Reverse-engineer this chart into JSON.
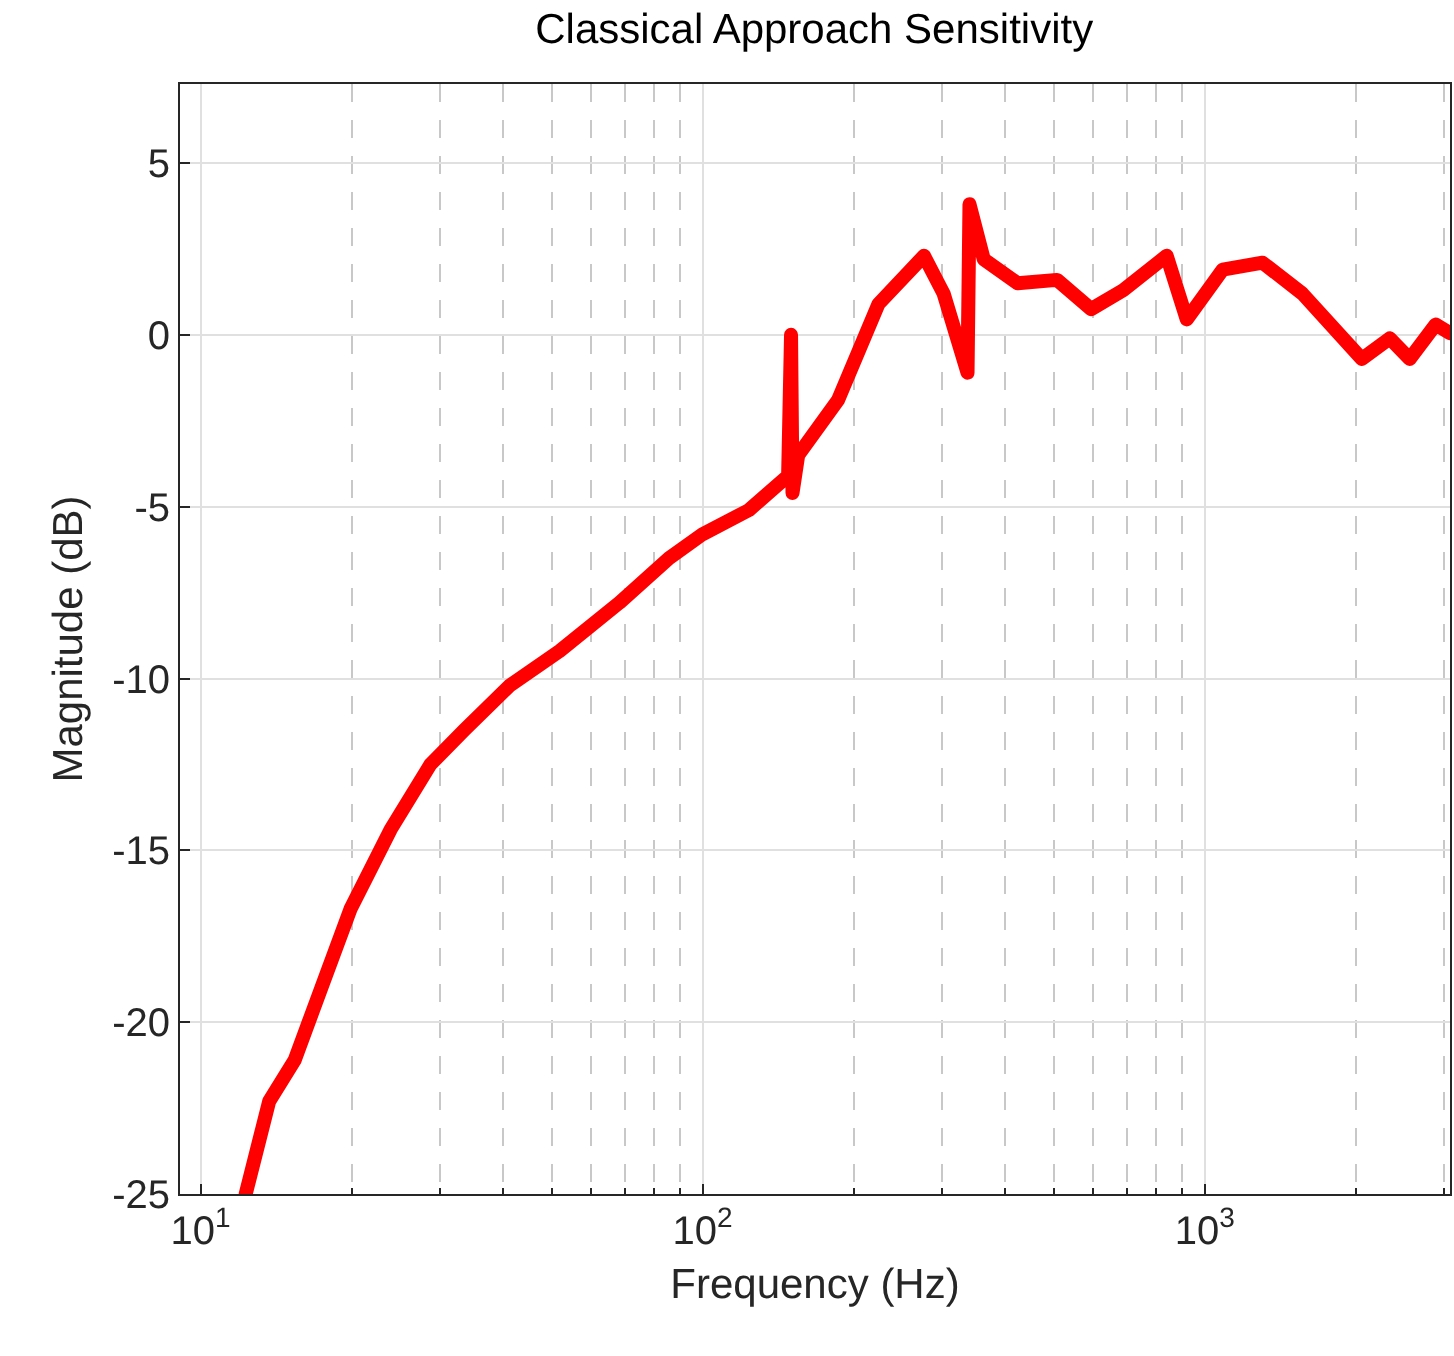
{
  "chart_data": {
    "type": "line",
    "title": "Classical Approach Sensitivity",
    "xlabel": "Frequency (Hz)",
    "ylabel": "Magnitude (dB)",
    "log": "x",
    "grid": true,
    "xlim": [
      9.1,
      3080
    ],
    "ylim": [
      -25,
      7.3
    ],
    "xticks": [
      {
        "value": 10,
        "label": "10$^{1}$"
      },
      {
        "value": 100,
        "label": "10$^{2}$"
      },
      {
        "value": 1000,
        "label": "10$^{3}$"
      }
    ],
    "yticks": [
      -25,
      -20,
      -15,
      -10,
      -5,
      0,
      5
    ],
    "x": [
      12.3,
      13.7,
      15.4,
      17.4,
      19.9,
      23.9,
      28.7,
      33.5,
      41.3,
      51.9,
      68.2,
      85.7,
      100,
      123.6,
      148,
      150,
      151,
      155,
      186,
      224,
      276,
      302,
      337,
      340,
      363,
      424,
      508,
      594,
      688,
      840,
      921,
      1086,
      1304,
      1565,
      2056,
      2337,
      2560,
      2884,
      3076
    ],
    "series": [
      {
        "color": "#ff0000",
        "values": [
          -25,
          -22.3,
          -21.1,
          -19.0,
          -16.7,
          -14.4,
          -12.5,
          -11.5,
          -10.2,
          -9.2,
          -7.8,
          -6.5,
          -5.8,
          -5.1,
          -4.1,
          0,
          -4.6,
          -3.5,
          -1.9,
          0.9,
          2.3,
          1.2,
          -1.1,
          3.8,
          2.2,
          1.5,
          1.6,
          0.75,
          1.3,
          2.3,
          0.45,
          1.9,
          2.1,
          1.2,
          -0.7,
          -0.1,
          -0.7,
          0.3,
          0.05
        ]
      }
    ]
  }
}
